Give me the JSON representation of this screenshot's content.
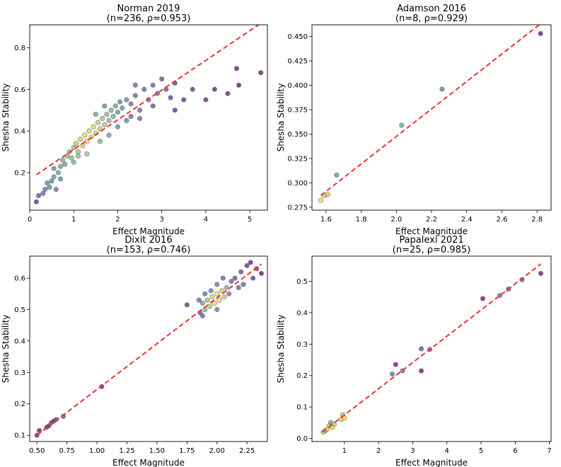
{
  "colors": {
    "fit_line": "#ee3333",
    "point_outline": "#9b5a8f",
    "viridis": [
      "#440154",
      "#3b528b",
      "#21918c",
      "#5ec962",
      "#fde725"
    ]
  },
  "chart_data": [
    {
      "type": "scatter",
      "title": "Norman 2019",
      "subtitle": "(n=236, ρ=0.953)",
      "xlabel": "Effect Magnitude",
      "ylabel": "Shesha Stability",
      "xlim": [
        0.0,
        5.4
      ],
      "ylim": [
        0.02,
        0.91
      ],
      "xticks": [
        0,
        1,
        2,
        3,
        4,
        5
      ],
      "xtick_labels": [
        "0",
        "1",
        "2",
        "3",
        "4",
        "5"
      ],
      "yticks": [
        0.2,
        0.4,
        0.6,
        0.8
      ],
      "ytick_labels": [
        "0.2",
        "0.4",
        "0.6",
        "0.8"
      ],
      "fit_line": [
        [
          0.15,
          0.19
        ],
        [
          5.2,
          0.91
        ]
      ],
      "points": [
        [
          0.15,
          0.06,
          0.1
        ],
        [
          0.2,
          0.09,
          0.2
        ],
        [
          0.3,
          0.1,
          0.3
        ],
        [
          0.35,
          0.12,
          0.4
        ],
        [
          0.4,
          0.15,
          0.45
        ],
        [
          0.45,
          0.13,
          0.5
        ],
        [
          0.5,
          0.16,
          0.5
        ],
        [
          0.55,
          0.18,
          0.55
        ],
        [
          0.6,
          0.12,
          0.35
        ],
        [
          0.65,
          0.2,
          0.6
        ],
        [
          0.7,
          0.23,
          0.6
        ],
        [
          0.75,
          0.26,
          0.65
        ],
        [
          0.8,
          0.24,
          0.6
        ],
        [
          0.85,
          0.28,
          0.7
        ],
        [
          0.9,
          0.3,
          0.75
        ],
        [
          0.95,
          0.27,
          0.7
        ],
        [
          1.0,
          0.32,
          0.8
        ],
        [
          1.05,
          0.34,
          0.85
        ],
        [
          1.1,
          0.3,
          0.8
        ],
        [
          1.15,
          0.36,
          0.9
        ],
        [
          1.2,
          0.33,
          0.9
        ],
        [
          1.25,
          0.38,
          0.95
        ],
        [
          1.3,
          0.35,
          0.95
        ],
        [
          1.35,
          0.4,
          0.9
        ],
        [
          1.4,
          0.37,
          0.95
        ],
        [
          1.45,
          0.42,
          0.9
        ],
        [
          1.5,
          0.39,
          0.9
        ],
        [
          1.55,
          0.44,
          0.85
        ],
        [
          1.6,
          0.41,
          0.85
        ],
        [
          1.65,
          0.46,
          0.8
        ],
        [
          1.7,
          0.43,
          0.8
        ],
        [
          1.75,
          0.48,
          0.75
        ],
        [
          1.8,
          0.45,
          0.7
        ],
        [
          1.85,
          0.5,
          0.7
        ],
        [
          1.9,
          0.47,
          0.65
        ],
        [
          1.95,
          0.52,
          0.6
        ],
        [
          2.0,
          0.49,
          0.55
        ],
        [
          2.05,
          0.54,
          0.5
        ],
        [
          2.1,
          0.51,
          0.5
        ],
        [
          2.2,
          0.55,
          0.45
        ],
        [
          2.3,
          0.53,
          0.4
        ],
        [
          2.4,
          0.57,
          0.35
        ],
        [
          2.5,
          0.5,
          0.35
        ],
        [
          2.6,
          0.6,
          0.3
        ],
        [
          2.7,
          0.55,
          0.3
        ],
        [
          2.8,
          0.62,
          0.25
        ],
        [
          2.9,
          0.58,
          0.25
        ],
        [
          3.0,
          0.65,
          0.2
        ],
        [
          3.1,
          0.6,
          0.2
        ],
        [
          3.2,
          0.56,
          0.15
        ],
        [
          3.3,
          0.63,
          0.15
        ],
        [
          3.5,
          0.55,
          0.1
        ],
        [
          3.7,
          0.6,
          0.1
        ],
        [
          4.0,
          0.55,
          0.05
        ],
        [
          4.2,
          0.6,
          0.05
        ],
        [
          4.5,
          0.58,
          0.05
        ],
        [
          4.7,
          0.7,
          0.0
        ],
        [
          4.75,
          0.62,
          0.0
        ],
        [
          5.25,
          0.68,
          0.0
        ],
        [
          0.55,
          0.22,
          0.5
        ],
        [
          0.7,
          0.17,
          0.5
        ],
        [
          1.0,
          0.25,
          0.7
        ],
        [
          1.1,
          0.28,
          0.75
        ],
        [
          1.3,
          0.29,
          0.8
        ],
        [
          1.6,
          0.35,
          0.7
        ],
        [
          1.8,
          0.38,
          0.6
        ],
        [
          2.0,
          0.42,
          0.5
        ],
        [
          2.2,
          0.45,
          0.4
        ],
        [
          2.5,
          0.46,
          0.3
        ],
        [
          1.5,
          0.48,
          0.6
        ],
        [
          1.7,
          0.52,
          0.5
        ],
        [
          2.4,
          0.62,
          0.3
        ],
        [
          2.3,
          0.47,
          0.35
        ],
        [
          2.8,
          0.52,
          0.2
        ],
        [
          3.3,
          0.5,
          0.1
        ]
      ]
    },
    {
      "type": "scatter",
      "title": "Adamson 2016",
      "subtitle": "(n=8, ρ=0.929)",
      "xlabel": "Effect Magnitude",
      "ylabel": "Shesha Stability",
      "xlim": [
        1.52,
        2.88
      ],
      "ylim": [
        0.272,
        0.462
      ],
      "xticks": [
        1.6,
        1.8,
        2.0,
        2.2,
        2.4,
        2.6,
        2.8
      ],
      "xtick_labels": [
        "1.6",
        "1.8",
        "2.0",
        "2.2",
        "2.4",
        "2.6",
        "2.8"
      ],
      "yticks": [
        0.275,
        0.3,
        0.325,
        0.35,
        0.375,
        0.4,
        0.425,
        0.45
      ],
      "ytick_labels": [
        "0.275",
        "0.300",
        "0.325",
        "0.350",
        "0.375",
        "0.400",
        "0.425",
        "0.450"
      ],
      "fit_line": [
        [
          1.57,
          0.287
        ],
        [
          2.82,
          0.463
        ]
      ],
      "points": [
        [
          1.57,
          0.282,
          0.95
        ],
        [
          1.59,
          0.287,
          0.85
        ],
        [
          1.61,
          0.288,
          0.9
        ],
        [
          1.66,
          0.308,
          0.55
        ],
        [
          2.03,
          0.359,
          0.6
        ],
        [
          2.26,
          0.396,
          0.45
        ],
        [
          2.82,
          0.453,
          0.0
        ]
      ]
    },
    {
      "type": "scatter",
      "title": "Dixit 2016",
      "subtitle": "(n=153, ρ=0.746)",
      "xlabel": "Effect Magnitude",
      "ylabel": "Shesha Stability",
      "xlim": [
        0.44,
        2.42
      ],
      "ylim": [
        0.08,
        0.67
      ],
      "xticks": [
        0.5,
        0.75,
        1.0,
        1.25,
        1.5,
        1.75,
        2.0,
        2.25
      ],
      "xtick_labels": [
        "0.50",
        "0.75",
        "1.00",
        "1.25",
        "1.50",
        "1.75",
        "2.00",
        "2.25"
      ],
      "yticks": [
        0.1,
        0.2,
        0.3,
        0.4,
        0.5,
        0.6
      ],
      "ytick_labels": [
        "0.1",
        "0.2",
        "0.3",
        "0.4",
        "0.5",
        "0.6"
      ],
      "fit_line": [
        [
          0.5,
          0.1
        ],
        [
          2.37,
          0.645
        ]
      ],
      "points": [
        [
          0.5,
          0.1,
          0.0
        ],
        [
          0.52,
          0.115,
          0.0
        ],
        [
          0.58,
          0.125,
          0.1
        ],
        [
          0.6,
          0.13,
          0.1
        ],
        [
          0.62,
          0.14,
          0.1
        ],
        [
          0.64,
          0.145,
          0.1
        ],
        [
          0.66,
          0.15,
          0.15
        ],
        [
          0.72,
          0.16,
          0.2
        ],
        [
          1.04,
          0.255,
          0.0
        ],
        [
          1.75,
          0.515,
          0.1
        ],
        [
          1.86,
          0.49,
          0.2
        ],
        [
          1.88,
          0.52,
          0.6
        ],
        [
          1.9,
          0.5,
          0.7
        ],
        [
          1.92,
          0.53,
          0.8
        ],
        [
          1.94,
          0.51,
          0.85
        ],
        [
          1.96,
          0.54,
          0.9
        ],
        [
          1.98,
          0.52,
          0.95
        ],
        [
          2.0,
          0.55,
          1.0
        ],
        [
          2.02,
          0.53,
          0.95
        ],
        [
          2.04,
          0.56,
          0.9
        ],
        [
          2.06,
          0.54,
          0.85
        ],
        [
          2.08,
          0.57,
          0.7
        ],
        [
          1.95,
          0.56,
          0.5
        ],
        [
          1.9,
          0.55,
          0.4
        ],
        [
          1.88,
          0.48,
          0.3
        ],
        [
          2.0,
          0.58,
          0.4
        ],
        [
          2.05,
          0.6,
          0.3
        ],
        [
          2.1,
          0.55,
          0.4
        ],
        [
          2.12,
          0.59,
          0.3
        ],
        [
          2.15,
          0.6,
          0.2
        ],
        [
          2.2,
          0.62,
          0.2
        ],
        [
          2.22,
          0.58,
          0.3
        ],
        [
          2.25,
          0.64,
          0.1
        ],
        [
          2.3,
          0.6,
          0.1
        ],
        [
          2.33,
          0.63,
          0.1
        ],
        [
          2.37,
          0.615,
          0.0
        ],
        [
          2.28,
          0.65,
          0.05
        ],
        [
          2.18,
          0.57,
          0.3
        ],
        [
          2.0,
          0.5,
          0.4
        ],
        [
          1.85,
          0.53,
          0.3
        ]
      ]
    },
    {
      "type": "scatter",
      "title": "Papalexi 2021",
      "subtitle": "(n=25, ρ=0.985)",
      "xlabel": "Effect Magnitude",
      "ylabel": "Shesha Stability",
      "xlim": [
        0.05,
        7.05
      ],
      "ylim": [
        -0.01,
        0.58
      ],
      "xticks": [
        1,
        2,
        3,
        4,
        5,
        6,
        7
      ],
      "xtick_labels": [
        "1",
        "2",
        "3",
        "4",
        "5",
        "6",
        "7"
      ],
      "yticks": [
        0.0,
        0.1,
        0.2,
        0.3,
        0.4,
        0.5
      ],
      "ytick_labels": [
        "0.0",
        "0.1",
        "0.2",
        "0.3",
        "0.4",
        "0.5"
      ],
      "fit_line": [
        [
          0.35,
          0.02
        ],
        [
          6.75,
          0.555
        ]
      ],
      "points": [
        [
          0.38,
          0.02,
          0.9
        ],
        [
          0.45,
          0.025,
          0.7
        ],
        [
          0.5,
          0.03,
          0.95
        ],
        [
          0.55,
          0.04,
          0.9
        ],
        [
          0.6,
          0.05,
          0.6
        ],
        [
          0.65,
          0.035,
          0.95
        ],
        [
          0.7,
          0.045,
          0.85
        ],
        [
          0.9,
          0.06,
          0.9
        ],
        [
          0.95,
          0.075,
          0.8
        ],
        [
          1.0,
          0.065,
          0.95
        ],
        [
          2.4,
          0.205,
          0.4
        ],
        [
          2.5,
          0.235,
          0.0
        ],
        [
          2.7,
          0.215,
          0.4
        ],
        [
          3.25,
          0.285,
          0.2
        ],
        [
          3.25,
          0.215,
          0.0
        ],
        [
          3.5,
          0.283,
          0.2
        ],
        [
          5.05,
          0.445,
          0.0
        ],
        [
          5.55,
          0.455,
          0.3
        ],
        [
          5.8,
          0.475,
          0.2
        ],
        [
          6.2,
          0.505,
          0.2
        ],
        [
          6.75,
          0.525,
          0.0
        ]
      ]
    }
  ]
}
